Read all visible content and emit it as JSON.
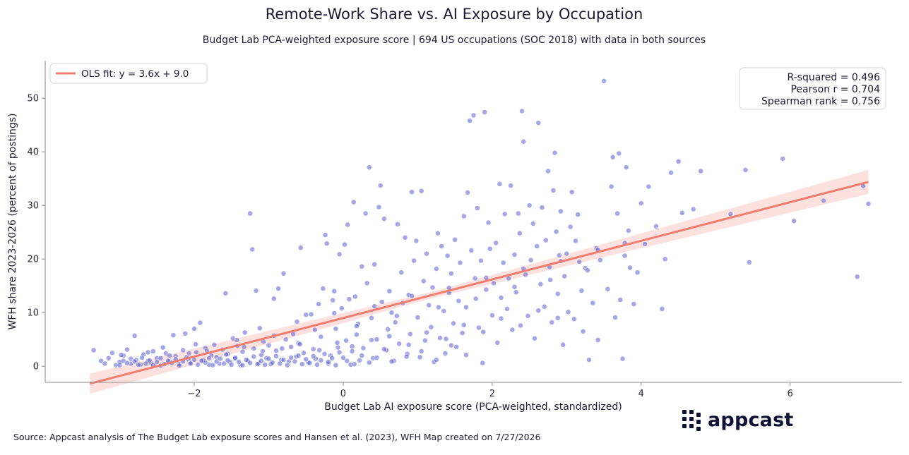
{
  "chart_data": {
    "type": "scatter",
    "title": "Remote-Work Share vs. AI Exposure by Occupation",
    "subtitle": "Budget Lab PCA-weighted exposure score | 694 US occupations (SOC 2018) with data in both sources",
    "xlabel": "Budget Lab AI exposure score (PCA-weighted, standardized)",
    "ylabel": "WFH share 2023-2026 (percent of postings)",
    "xlim": [
      -4.0,
      7.5
    ],
    "ylim": [
      -3.0,
      57.0
    ],
    "xticks": [
      -2,
      0,
      2,
      4,
      6
    ],
    "yticks": [
      0,
      10,
      20,
      30,
      40,
      50
    ],
    "xtick_labels": [
      "−2",
      "0",
      "2",
      "4",
      "6"
    ],
    "ytick_labels": [
      "0",
      "10",
      "20",
      "30",
      "40",
      "50"
    ],
    "grid": false,
    "legend_position": "top-left",
    "fit": {
      "label": "OLS fit: y = 3.6x + 9.0",
      "slope": 3.6,
      "intercept": 9.0,
      "x_range": [
        -3.4,
        7.05
      ],
      "ci_color": "#f9c9c2",
      "line_color": "#f47c6e"
    },
    "stats": [
      "R-squared = 0.496",
      "Pearson r = 0.704",
      "Spearman rank = 0.756"
    ],
    "point_color": "#5b5fd1",
    "points": [
      [
        -3.35,
        3.0
      ],
      [
        -3.25,
        1.0
      ],
      [
        -3.2,
        0.5
      ],
      [
        -3.15,
        1.5
      ],
      [
        -3.1,
        2.5
      ],
      [
        -3.05,
        0.2
      ],
      [
        -3.0,
        0.8
      ],
      [
        -2.95,
        2.0
      ],
      [
        -2.9,
        3.1
      ],
      [
        -2.85,
        0.5
      ],
      [
        -2.8,
        5.7
      ],
      [
        -2.78,
        1.2
      ],
      [
        -2.72,
        0.3
      ],
      [
        -2.68,
        2.2
      ],
      [
        -2.62,
        1.0
      ],
      [
        -2.58,
        0.6
      ],
      [
        -2.55,
        2.8
      ],
      [
        -2.5,
        1.5
      ],
      [
        -2.45,
        0.1
      ],
      [
        -2.42,
        3.5
      ],
      [
        -2.38,
        2.4
      ],
      [
        -2.33,
        0.9
      ],
      [
        -2.28,
        5.8
      ],
      [
        -2.25,
        1.9
      ],
      [
        -2.2,
        0.4
      ],
      [
        -2.15,
        3.0
      ],
      [
        -2.12,
        6.1
      ],
      [
        -2.08,
        1.3
      ],
      [
        -2.05,
        0.7
      ],
      [
        -2.0,
        7.0
      ],
      [
        -1.97,
        2.6
      ],
      [
        -1.92,
        8.1
      ],
      [
        -1.88,
        1.1
      ],
      [
        -1.85,
        3.4
      ],
      [
        -1.8,
        0.3
      ],
      [
        -1.77,
        2.0
      ],
      [
        -1.73,
        4.0
      ],
      [
        -1.7,
        1.7
      ],
      [
        -1.66,
        0.5
      ],
      [
        -1.62,
        3.1
      ],
      [
        -1.58,
        13.6
      ],
      [
        -1.55,
        2.3
      ],
      [
        -1.52,
        0.8
      ],
      [
        -1.48,
        5.2
      ],
      [
        -1.45,
        1.4
      ],
      [
        -1.42,
        3.8
      ],
      [
        -1.38,
        0.2
      ],
      [
        -1.35,
        2.7
      ],
      [
        -1.32,
        6.3
      ],
      [
        -1.28,
        1.0
      ],
      [
        -1.25,
        28.5
      ],
      [
        -1.22,
        21.8
      ],
      [
        -1.2,
        3.3
      ],
      [
        -1.17,
        14.1
      ],
      [
        -1.13,
        0.6
      ],
      [
        -1.1,
        2.1
      ],
      [
        -1.07,
        4.6
      ],
      [
        -1.03,
        1.5
      ],
      [
        -1.0,
        3.9
      ],
      [
        -0.97,
        0.4
      ],
      [
        -0.93,
        12.6
      ],
      [
        -0.9,
        2.9
      ],
      [
        -0.87,
        14.5
      ],
      [
        -0.83,
        1.2
      ],
      [
        -0.8,
        17.3
      ],
      [
        -0.77,
        5.0
      ],
      [
        -0.73,
        0.9
      ],
      [
        -0.7,
        3.6
      ],
      [
        -0.67,
        6.0
      ],
      [
        -0.63,
        1.8
      ],
      [
        -0.6,
        4.3
      ],
      [
        -0.57,
        22.1
      ],
      [
        -0.53,
        2.5
      ],
      [
        -0.5,
        9.6
      ],
      [
        -0.47,
        0.7
      ],
      [
        -0.43,
        9.7
      ],
      [
        -0.4,
        3.2
      ],
      [
        -0.37,
        1.4
      ],
      [
        -0.33,
        11.6
      ],
      [
        -0.3,
        5.5
      ],
      [
        -0.27,
        14.5
      ],
      [
        -0.24,
        24.5
      ],
      [
        -0.22,
        22.9
      ],
      [
        -0.2,
        0.5
      ],
      [
        -0.17,
        2.0
      ],
      [
        -0.14,
        12.3
      ],
      [
        -0.12,
        14.0
      ],
      [
        -0.1,
        7.0
      ],
      [
        -0.07,
        3.5
      ],
      [
        -0.05,
        20.9
      ],
      [
        -0.02,
        10.8
      ],
      [
        0.0,
        1.6
      ],
      [
        0.02,
        22.7
      ],
      [
        0.04,
        4.8
      ],
      [
        0.06,
        26.4
      ],
      [
        0.08,
        12.5
      ],
      [
        0.1,
        0.3
      ],
      [
        0.12,
        2.8
      ],
      [
        0.14,
        30.6
      ],
      [
        0.16,
        13.0
      ],
      [
        0.18,
        5.9
      ],
      [
        0.2,
        7.9
      ],
      [
        0.22,
        1.1
      ],
      [
        0.25,
        18.6
      ],
      [
        0.27,
        3.4
      ],
      [
        0.3,
        28.5
      ],
      [
        0.32,
        15.5
      ],
      [
        0.35,
        37.1
      ],
      [
        0.38,
        9.0
      ],
      [
        0.4,
        1.5
      ],
      [
        0.42,
        19.0
      ],
      [
        0.45,
        5.0
      ],
      [
        0.48,
        29.7
      ],
      [
        0.5,
        33.7
      ],
      [
        0.52,
        12.0
      ],
      [
        0.55,
        27.5
      ],
      [
        0.58,
        3.0
      ],
      [
        0.6,
        6.9
      ],
      [
        0.62,
        14.0
      ],
      [
        0.65,
        10.0
      ],
      [
        0.68,
        1.0
      ],
      [
        0.7,
        8.2
      ],
      [
        0.73,
        26.5
      ],
      [
        0.75,
        4.2
      ],
      [
        0.78,
        17.5
      ],
      [
        0.8,
        11.8
      ],
      [
        0.83,
        24.0
      ],
      [
        0.86,
        2.3
      ],
      [
        0.88,
        13.3
      ],
      [
        0.9,
        6.0
      ],
      [
        0.92,
        32.5
      ],
      [
        0.95,
        19.7
      ],
      [
        0.98,
        23.4
      ],
      [
        1.0,
        9.1
      ],
      [
        1.03,
        1.7
      ],
      [
        1.05,
        32.7
      ],
      [
        1.08,
        15.9
      ],
      [
        1.1,
        4.8
      ],
      [
        1.12,
        21.0
      ],
      [
        1.15,
        11.4
      ],
      [
        1.18,
        7.3
      ],
      [
        1.2,
        14.7
      ],
      [
        1.22,
        0.8
      ],
      [
        1.25,
        18.2
      ],
      [
        1.27,
        24.8
      ],
      [
        1.3,
        5.3
      ],
      [
        1.32,
        22.4
      ],
      [
        1.35,
        10.3
      ],
      [
        1.37,
        2.4
      ],
      [
        1.4,
        20.6
      ],
      [
        1.42,
        13.7
      ],
      [
        1.45,
        17.3
      ],
      [
        1.48,
        8.0
      ],
      [
        1.5,
        23.6
      ],
      [
        1.52,
        3.6
      ],
      [
        1.55,
        12.2
      ],
      [
        1.57,
        19.3
      ],
      [
        1.6,
        6.2
      ],
      [
        1.62,
        28.0
      ],
      [
        1.65,
        11.0
      ],
      [
        1.67,
        32.4
      ],
      [
        1.7,
        45.8
      ],
      [
        1.72,
        21.6
      ],
      [
        1.75,
        46.8
      ],
      [
        1.77,
        16.4
      ],
      [
        1.8,
        29.5
      ],
      [
        1.82,
        7.2
      ],
      [
        1.85,
        19.7
      ],
      [
        1.87,
        0.6
      ],
      [
        1.9,
        47.4
      ],
      [
        1.92,
        14.3
      ],
      [
        1.95,
        26.8
      ],
      [
        1.97,
        21.9
      ],
      [
        2.0,
        9.5
      ],
      [
        2.02,
        15.5
      ],
      [
        2.05,
        23.0
      ],
      [
        2.07,
        4.4
      ],
      [
        2.1,
        34.0
      ],
      [
        2.12,
        12.8
      ],
      [
        2.15,
        19.3
      ],
      [
        2.17,
        28.4
      ],
      [
        2.2,
        10.7
      ],
      [
        2.22,
        16.4
      ],
      [
        2.25,
        33.7
      ],
      [
        2.27,
        6.8
      ],
      [
        2.3,
        20.8
      ],
      [
        2.32,
        13.8
      ],
      [
        2.35,
        28.5
      ],
      [
        2.37,
        24.8
      ],
      [
        2.4,
        47.6
      ],
      [
        2.42,
        41.9
      ],
      [
        2.45,
        17.1
      ],
      [
        2.48,
        9.4
      ],
      [
        2.5,
        30.0
      ],
      [
        2.52,
        19.8
      ],
      [
        2.55,
        26.6
      ],
      [
        2.57,
        5.2
      ],
      [
        2.6,
        22.4
      ],
      [
        2.62,
        45.4
      ],
      [
        2.65,
        15.3
      ],
      [
        2.67,
        29.6
      ],
      [
        2.7,
        11.1
      ],
      [
        2.72,
        23.5
      ],
      [
        2.75,
        36.4
      ],
      [
        2.77,
        18.5
      ],
      [
        2.8,
        8.2
      ],
      [
        2.82,
        32.8
      ],
      [
        2.84,
        39.8
      ],
      [
        2.86,
        25.1
      ],
      [
        2.88,
        13.5
      ],
      [
        2.9,
        20.7
      ],
      [
        2.92,
        28.9
      ],
      [
        2.95,
        4.0
      ],
      [
        2.97,
        16.8
      ],
      [
        3.0,
        21.0
      ],
      [
        3.02,
        10.1
      ],
      [
        3.05,
        26.0
      ],
      [
        3.07,
        32.5
      ],
      [
        3.1,
        8.8
      ],
      [
        3.12,
        23.4
      ],
      [
        3.15,
        28.3
      ],
      [
        3.17,
        19.5
      ],
      [
        3.2,
        14.1
      ],
      [
        3.22,
        6.5
      ],
      [
        3.25,
        18.3
      ],
      [
        3.3,
        1.2
      ],
      [
        3.35,
        11.8
      ],
      [
        3.4,
        22.0
      ],
      [
        3.42,
        4.9
      ],
      [
        3.45,
        19.8
      ],
      [
        3.5,
        53.2
      ],
      [
        3.55,
        14.4
      ],
      [
        3.6,
        33.5
      ],
      [
        3.62,
        39.0
      ],
      [
        3.65,
        9.1
      ],
      [
        3.68,
        28.5
      ],
      [
        3.7,
        39.7
      ],
      [
        3.72,
        12.4
      ],
      [
        3.75,
        1.4
      ],
      [
        3.78,
        23.0
      ],
      [
        3.8,
        37.1
      ],
      [
        3.83,
        25.3
      ],
      [
        3.85,
        18.4
      ],
      [
        3.9,
        11.6
      ],
      [
        3.95,
        17.5
      ],
      [
        4.0,
        30.4
      ],
      [
        4.05,
        22.8
      ],
      [
        4.1,
        33.5
      ],
      [
        4.2,
        26.1
      ],
      [
        4.28,
        10.7
      ],
      [
        4.32,
        20.0
      ],
      [
        4.4,
        36.1
      ],
      [
        4.5,
        38.2
      ],
      [
        4.55,
        28.6
      ],
      [
        4.7,
        29.3
      ],
      [
        4.8,
        36.4
      ],
      [
        5.2,
        28.4
      ],
      [
        5.4,
        36.6
      ],
      [
        5.45,
        19.4
      ],
      [
        5.9,
        38.7
      ],
      [
        6.05,
        27.1
      ],
      [
        6.45,
        30.9
      ],
      [
        6.9,
        16.7
      ],
      [
        6.98,
        33.6
      ],
      [
        7.05,
        30.3
      ],
      [
        -3.0,
        0.2
      ],
      [
        -2.95,
        1.0
      ],
      [
        -2.9,
        0.6
      ],
      [
        -2.85,
        1.4
      ],
      [
        -2.8,
        0.9
      ],
      [
        -2.75,
        0.3
      ],
      [
        -2.7,
        1.6
      ],
      [
        -2.65,
        0.5
      ],
      [
        -2.6,
        1.1
      ],
      [
        -2.55,
        0.2
      ],
      [
        -2.5,
        0.8
      ],
      [
        -2.45,
        1.5
      ],
      [
        -2.4,
        0.4
      ],
      [
        -2.35,
        1.0
      ],
      [
        -2.3,
        0.6
      ],
      [
        -2.25,
        1.3
      ],
      [
        -2.2,
        0.1
      ],
      [
        -2.15,
        0.9
      ],
      [
        -2.1,
        1.7
      ],
      [
        -2.05,
        0.5
      ],
      [
        -2.0,
        1.2
      ],
      [
        -1.95,
        0.3
      ],
      [
        -1.9,
        1.0
      ],
      [
        -1.85,
        0.7
      ],
      [
        -1.8,
        1.5
      ],
      [
        -1.75,
        0.2
      ],
      [
        -1.7,
        0.9
      ],
      [
        -1.65,
        1.4
      ],
      [
        -1.6,
        0.5
      ],
      [
        -1.55,
        1.1
      ],
      [
        -1.5,
        0.3
      ],
      [
        -1.45,
        1.6
      ],
      [
        -1.4,
        0.8
      ],
      [
        -1.35,
        0.2
      ],
      [
        -1.3,
        1.2
      ],
      [
        -1.25,
        0.6
      ],
      [
        -1.2,
        1.8
      ],
      [
        -1.15,
        0.4
      ],
      [
        -1.1,
        1.0
      ],
      [
        -1.05,
        0.3
      ],
      [
        -1.0,
        1.4
      ],
      [
        -0.95,
        0.7
      ],
      [
        -0.9,
        1.9
      ],
      [
        -0.85,
        0.5
      ],
      [
        -0.8,
        1.2
      ],
      [
        -0.75,
        0.2
      ],
      [
        -0.7,
        1.6
      ],
      [
        -0.65,
        0.9
      ],
      [
        -0.6,
        2.0
      ],
      [
        -0.55,
        0.4
      ],
      [
        -0.5,
        1.3
      ],
      [
        -0.45,
        0.6
      ],
      [
        -0.4,
        1.9
      ],
      [
        -0.35,
        0.3
      ],
      [
        -0.3,
        1.1
      ],
      [
        -0.25,
        2.3
      ],
      [
        -0.2,
        0.8
      ],
      [
        -0.15,
        1.5
      ],
      [
        -0.1,
        0.2
      ],
      [
        -0.05,
        2.6
      ],
      [
        0.05,
        1.0
      ],
      [
        0.15,
        0.4
      ],
      [
        0.25,
        2.0
      ],
      [
        0.35,
        0.7
      ],
      [
        0.45,
        1.6
      ],
      [
        0.55,
        3.2
      ],
      [
        0.65,
        0.9
      ],
      [
        0.85,
        1.8
      ],
      [
        1.05,
        2.8
      ],
      [
        1.25,
        1.2
      ],
      [
        1.45,
        3.9
      ],
      [
        1.65,
        2.1
      ],
      [
        -2.98,
        2.1
      ],
      [
        -2.62,
        2.6
      ],
      [
        -2.33,
        2.0
      ],
      [
        -2.07,
        2.4
      ],
      [
        -1.83,
        2.9
      ],
      [
        -1.57,
        2.2
      ],
      [
        -1.33,
        3.6
      ],
      [
        -1.08,
        2.8
      ],
      [
        -0.82,
        3.3
      ],
      [
        -0.58,
        4.1
      ],
      [
        -0.32,
        3.0
      ],
      [
        -0.08,
        4.4
      ],
      [
        0.12,
        3.7
      ],
      [
        0.38,
        4.9
      ],
      [
        0.62,
        5.6
      ],
      [
        0.88,
        4.0
      ],
      [
        1.12,
        6.3
      ],
      [
        1.38,
        5.1
      ],
      [
        1.62,
        7.7
      ],
      [
        1.88,
        6.4
      ],
      [
        2.12,
        8.9
      ],
      [
        2.38,
        7.6
      ],
      [
        2.62,
        10.4
      ],
      [
        2.88,
        9.0
      ],
      [
        -1.98,
        4.1
      ],
      [
        -1.43,
        4.9
      ],
      [
        -0.93,
        5.7
      ],
      [
        -0.38,
        6.8
      ],
      [
        0.18,
        7.5
      ],
      [
        0.72,
        9.4
      ],
      [
        1.28,
        11.0
      ],
      [
        1.78,
        12.6
      ],
      [
        2.3,
        14.8
      ],
      [
        2.78,
        16.1
      ],
      [
        3.28,
        17.9
      ],
      [
        3.78,
        20.6
      ],
      [
        -1.12,
        7.1
      ],
      [
        -0.62,
        8.3
      ],
      [
        -0.12,
        9.9
      ],
      [
        0.42,
        11.2
      ],
      [
        0.92,
        13.1
      ],
      [
        1.42,
        14.6
      ],
      [
        1.92,
        16.5
      ],
      [
        2.42,
        18.2
      ],
      [
        2.92,
        19.6
      ],
      [
        3.42,
        21.7
      ]
    ]
  }
}
